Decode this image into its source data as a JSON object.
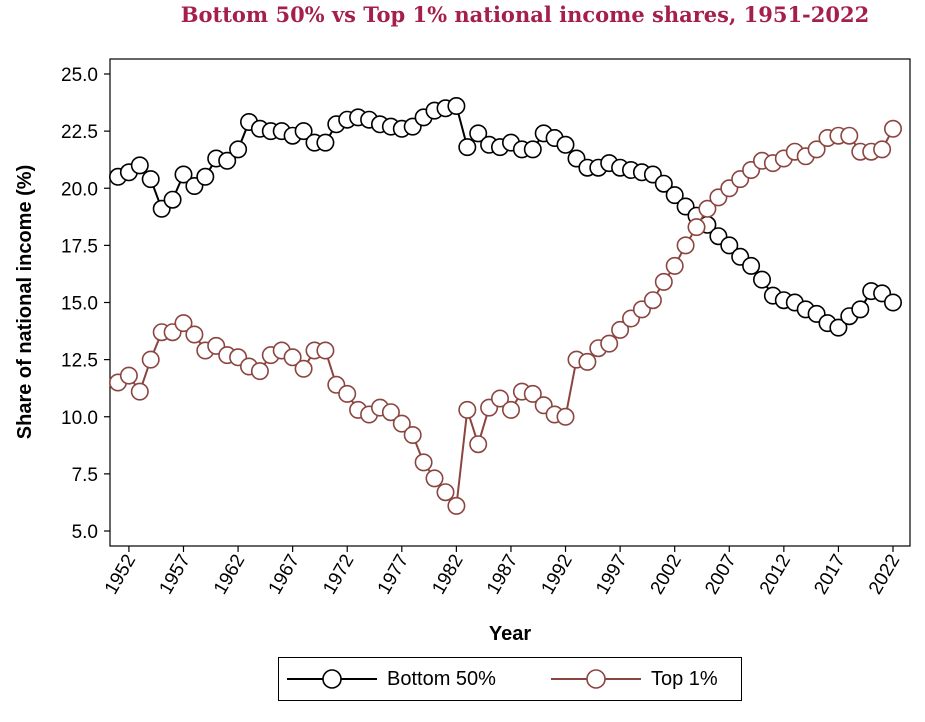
{
  "chart_data": {
    "type": "line",
    "title": "Bottom 50% vs Top 1% national income shares, 1951-2022",
    "xlabel": "Year",
    "ylabel": "Share of national income (%)",
    "xlim": [
      1951,
      2022
    ],
    "ylim": [
      5.0,
      25.0
    ],
    "xticks": [
      1952,
      1957,
      1962,
      1967,
      1972,
      1977,
      1982,
      1987,
      1992,
      1997,
      2002,
      2007,
      2012,
      2017,
      2022
    ],
    "yticks": [
      "5.0",
      "7.5",
      "10.0",
      "12.5",
      "15.0",
      "17.5",
      "20.0",
      "22.5",
      "25.0"
    ],
    "legend_position": "bottom",
    "grid": false,
    "x": [
      1951,
      1952,
      1953,
      1954,
      1955,
      1956,
      1957,
      1958,
      1959,
      1960,
      1961,
      1962,
      1963,
      1964,
      1965,
      1966,
      1967,
      1968,
      1969,
      1970,
      1971,
      1972,
      1973,
      1974,
      1975,
      1976,
      1977,
      1978,
      1979,
      1980,
      1981,
      1982,
      1983,
      1984,
      1985,
      1986,
      1987,
      1988,
      1989,
      1990,
      1991,
      1992,
      1993,
      1994,
      1995,
      1996,
      1997,
      1998,
      1999,
      2000,
      2001,
      2002,
      2003,
      2004,
      2005,
      2006,
      2007,
      2008,
      2009,
      2010,
      2011,
      2012,
      2013,
      2014,
      2015,
      2016,
      2017,
      2018,
      2019,
      2020,
      2021,
      2022
    ],
    "series": [
      {
        "name": "Bottom 50%",
        "color": "#000000",
        "values": [
          20.5,
          20.7,
          21.0,
          20.4,
          19.1,
          19.5,
          20.6,
          20.1,
          20.5,
          21.3,
          21.2,
          21.7,
          22.9,
          22.6,
          22.5,
          22.5,
          22.3,
          22.5,
          22.0,
          22.0,
          22.8,
          23.0,
          23.1,
          23.0,
          22.8,
          22.7,
          22.6,
          22.7,
          23.1,
          23.4,
          23.5,
          23.6,
          21.8,
          22.4,
          21.9,
          21.8,
          22.0,
          21.7,
          21.7,
          22.4,
          22.2,
          21.9,
          21.3,
          20.9,
          20.9,
          21.1,
          20.9,
          20.8,
          20.7,
          20.6,
          20.2,
          19.7,
          19.2,
          18.8,
          18.4,
          17.9,
          17.5,
          17.0,
          16.6,
          16.0,
          15.3,
          15.1,
          15.0,
          14.7,
          14.5,
          14.1,
          13.9,
          14.4,
          14.7,
          15.5,
          15.4,
          15.0
        ]
      },
      {
        "name": "Top 1%",
        "color": "#8b4540",
        "values": [
          11.5,
          11.8,
          11.1,
          12.5,
          13.7,
          13.7,
          14.1,
          13.6,
          12.9,
          13.1,
          12.7,
          12.6,
          12.2,
          12.0,
          12.7,
          12.9,
          12.6,
          12.1,
          12.9,
          12.9,
          11.4,
          11.0,
          10.3,
          10.1,
          10.4,
          10.2,
          9.7,
          9.2,
          8.0,
          7.3,
          6.7,
          6.1,
          10.3,
          8.8,
          10.4,
          10.8,
          10.3,
          11.1,
          11.0,
          10.5,
          10.1,
          10.0,
          12.5,
          12.4,
          13.0,
          13.2,
          13.8,
          14.3,
          14.7,
          15.1,
          15.9,
          16.6,
          17.5,
          18.3,
          19.1,
          19.6,
          20.0,
          20.4,
          20.8,
          21.2,
          21.1,
          21.3,
          21.6,
          21.4,
          21.7,
          22.2,
          22.3,
          22.3,
          21.6,
          21.6,
          21.7,
          22.6
        ]
      }
    ]
  }
}
